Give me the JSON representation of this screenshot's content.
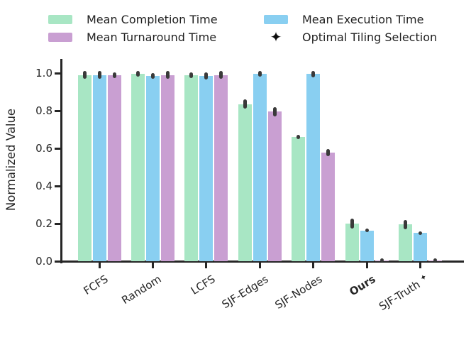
{
  "legend": {
    "items": [
      {
        "label": "Mean Completion Time",
        "marker": "swatch",
        "color": "#a8e6c4"
      },
      {
        "label": "Mean Turnaround Time",
        "marker": "swatch",
        "color": "#c99fd2"
      },
      {
        "label": "Mean Execution Time",
        "marker": "swatch",
        "color": "#89cff1"
      },
      {
        "label": "Optimal Tiling Selection",
        "marker": "star",
        "color": "#0d0d0d",
        "glyph": "✦"
      }
    ]
  },
  "chart_data": {
    "type": "bar",
    "title": "",
    "xlabel": "",
    "ylabel": "Normalized Value",
    "ylim": [
      0.0,
      1.07
    ],
    "yticks": [
      0.0,
      0.2,
      0.4,
      0.6,
      0.8,
      1.0
    ],
    "ytick_labels": [
      "0.0",
      "0.2",
      "0.4",
      "0.6",
      "0.8",
      "1.0"
    ],
    "grid": false,
    "legend_position": "top",
    "categories": [
      "FCFS",
      "Random",
      "LCFS",
      "SJF-Edges",
      "SJF-Nodes",
      "Ours",
      "SJF-Truth"
    ],
    "bold_category": "Ours",
    "star_category": "SJF-Truth",
    "star_glyph": "✦",
    "error_bar_color": "#3a3a3a",
    "series": [
      {
        "name": "Mean Completion Time",
        "color": "#a8e6c4",
        "values": [
          0.99,
          0.995,
          0.99,
          0.835,
          0.66,
          0.2,
          0.195
        ],
        "errors": [
          0.02,
          0.015,
          0.015,
          0.025,
          0.012,
          0.025,
          0.025
        ]
      },
      {
        "name": "Mean Execution Time",
        "color": "#89cff1",
        "values": [
          0.99,
          0.985,
          0.985,
          0.995,
          0.995,
          0.163,
          0.15
        ],
        "errors": [
          0.02,
          0.015,
          0.02,
          0.015,
          0.018,
          0.01,
          0.01
        ]
      },
      {
        "name": "Mean Turnaround Time",
        "color": "#c99fd2",
        "values": [
          0.99,
          0.99,
          0.99,
          0.795,
          0.577,
          0.004,
          0.004
        ],
        "errors": [
          0.015,
          0.02,
          0.02,
          0.025,
          0.018,
          0.004,
          0.004
        ]
      }
    ]
  }
}
